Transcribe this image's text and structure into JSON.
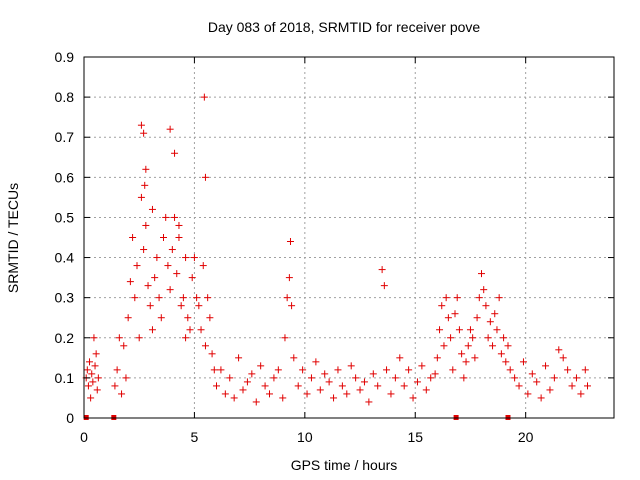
{
  "chart_data": {
    "type": "scatter",
    "title": "Day 083 of 2018, SRMTID for receiver pove",
    "xlabel": "GPS time / hours",
    "ylabel": "SRMTID / TECUs",
    "xlim": [
      0,
      24
    ],
    "ylim": [
      0,
      0.9
    ],
    "xticks": [
      0,
      5,
      10,
      15,
      20
    ],
    "yticks": [
      0,
      0.1,
      0.2,
      0.3,
      0.4,
      0.5,
      0.6,
      0.7,
      0.8,
      0.9
    ],
    "xtick_labels": [
      "0",
      "5",
      "10",
      "15",
      "20"
    ],
    "ytick_labels": [
      "0",
      "0.1",
      "0.2",
      "0.3",
      "0.4",
      "0.5",
      "0.6",
      "0.7",
      "0.8",
      "0.9"
    ],
    "grid": true,
    "marker": "+",
    "marker_color": "#e00000",
    "series": [
      {
        "name": "SRMTID",
        "x": [
          0.1,
          0.15,
          0.2,
          0.25,
          0.3,
          0.35,
          0.4,
          0.45,
          0.5,
          0.55,
          0.6,
          0.65,
          1.4,
          1.5,
          1.6,
          1.7,
          1.8,
          1.9,
          2.0,
          2.1,
          2.2,
          2.3,
          2.4,
          2.5,
          2.6,
          2.7,
          2.8,
          2.9,
          3.0,
          3.1,
          3.2,
          3.3,
          3.4,
          3.5,
          3.6,
          3.7,
          3.8,
          3.9,
          4.0,
          4.1,
          4.2,
          4.3,
          4.4,
          4.5,
          4.6,
          4.7,
          4.8,
          4.9,
          5.0,
          5.1,
          5.2,
          5.3,
          5.4,
          5.5,
          5.6,
          5.7,
          5.8,
          5.9,
          2.6,
          2.7,
          2.75,
          3.9,
          4.1,
          5.45,
          5.5,
          4.3,
          3.1,
          2.8,
          4.6,
          6.0,
          6.2,
          6.4,
          6.6,
          6.8,
          7.0,
          7.2,
          7.4,
          7.6,
          7.8,
          8.0,
          8.2,
          8.4,
          8.6,
          8.8,
          9.0,
          9.1,
          9.2,
          9.3,
          9.35,
          9.4,
          9.5,
          9.7,
          9.9,
          10.1,
          10.3,
          10.5,
          10.7,
          10.9,
          11.1,
          11.3,
          11.5,
          11.7,
          11.9,
          12.1,
          12.3,
          12.5,
          12.7,
          12.9,
          13.1,
          13.3,
          13.5,
          13.6,
          13.7,
          13.9,
          14.1,
          14.3,
          14.5,
          14.7,
          14.9,
          15.1,
          15.3,
          15.5,
          15.7,
          15.9,
          16.0,
          16.1,
          16.2,
          16.3,
          16.4,
          16.5,
          16.6,
          16.7,
          16.8,
          16.9,
          17.0,
          17.1,
          17.2,
          17.3,
          17.4,
          17.5,
          17.6,
          17.7,
          17.8,
          17.9,
          18.0,
          18.1,
          18.2,
          18.3,
          18.4,
          18.5,
          18.6,
          18.7,
          18.8,
          18.9,
          19.0,
          19.1,
          19.2,
          19.3,
          19.5,
          19.7,
          19.9,
          20.1,
          20.3,
          20.5,
          20.7,
          20.9,
          21.1,
          21.3,
          21.5,
          21.7,
          21.9,
          22.1,
          22.3,
          22.5,
          22.7,
          22.8
        ],
        "y": [
          0.1,
          0.12,
          0.08,
          0.14,
          0.05,
          0.11,
          0.09,
          0.2,
          0.13,
          0.16,
          0.07,
          0.1,
          0.08,
          0.12,
          0.2,
          0.06,
          0.18,
          0.1,
          0.25,
          0.34,
          0.45,
          0.3,
          0.38,
          0.2,
          0.55,
          0.42,
          0.48,
          0.33,
          0.28,
          0.22,
          0.35,
          0.4,
          0.3,
          0.25,
          0.45,
          0.5,
          0.38,
          0.32,
          0.42,
          0.5,
          0.36,
          0.48,
          0.28,
          0.3,
          0.2,
          0.25,
          0.22,
          0.35,
          0.4,
          0.3,
          0.28,
          0.22,
          0.38,
          0.18,
          0.3,
          0.25,
          0.16,
          0.12,
          0.73,
          0.71,
          0.58,
          0.72,
          0.66,
          0.8,
          0.6,
          0.45,
          0.52,
          0.62,
          0.4,
          0.08,
          0.12,
          0.06,
          0.1,
          0.05,
          0.15,
          0.07,
          0.09,
          0.11,
          0.04,
          0.13,
          0.08,
          0.06,
          0.1,
          0.12,
          0.05,
          0.2,
          0.3,
          0.35,
          0.44,
          0.28,
          0.15,
          0.08,
          0.12,
          0.06,
          0.1,
          0.14,
          0.07,
          0.11,
          0.09,
          0.05,
          0.12,
          0.08,
          0.06,
          0.13,
          0.1,
          0.07,
          0.09,
          0.04,
          0.11,
          0.08,
          0.37,
          0.33,
          0.12,
          0.06,
          0.1,
          0.15,
          0.08,
          0.12,
          0.05,
          0.09,
          0.13,
          0.07,
          0.1,
          0.11,
          0.15,
          0.22,
          0.28,
          0.18,
          0.3,
          0.25,
          0.2,
          0.12,
          0.26,
          0.3,
          0.22,
          0.16,
          0.1,
          0.14,
          0.18,
          0.22,
          0.2,
          0.15,
          0.25,
          0.3,
          0.36,
          0.32,
          0.28,
          0.2,
          0.24,
          0.18,
          0.26,
          0.22,
          0.3,
          0.16,
          0.2,
          0.14,
          0.18,
          0.12,
          0.1,
          0.08,
          0.14,
          0.06,
          0.11,
          0.09,
          0.05,
          0.13,
          0.07,
          0.1,
          0.17,
          0.15,
          0.12,
          0.08,
          0.1,
          0.06,
          0.12,
          0.08
        ]
      }
    ],
    "data_gaps_x": [
      0.1,
      1.35,
      16.85,
      19.2
    ]
  }
}
